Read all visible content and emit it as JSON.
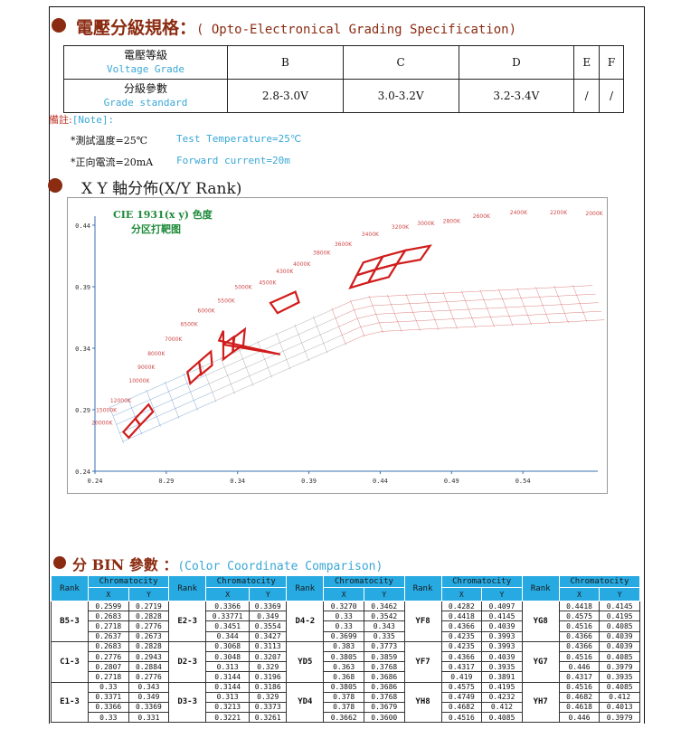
{
  "section1": {
    "title": "電壓分級規格：",
    "subtitle": "( Opto-Electronical Grading Specification)"
  },
  "grade_table": {
    "grades": [
      "B",
      "C",
      "D",
      "E",
      "F"
    ],
    "voltage_label_cn": "電壓等級",
    "voltage_label_en": "Voltage Grade",
    "standard_label_cn": "分級參數",
    "standard_label_en": "Grade standard",
    "standards": [
      "2.8-3.0V",
      "3.0-3.2V",
      "3.2-3.4V",
      "/",
      "/"
    ]
  },
  "notes": {
    "label": "備註:",
    "label_en": "[Note]:",
    "temp_cn": "*測試溫度=25℃",
    "temp_en": "Test Temperature=25℃",
    "current_cn": "*正向電流=20mA",
    "current_en": "Forward current=20m"
  },
  "section2": {
    "title": "X Y 軸分佈(X/Y Rank)"
  },
  "chart_data": {
    "type": "scatter",
    "title": "CIE 1931(x y) 色度",
    "subtitle": "分区打靶图",
    "xlim": [
      0.24,
      0.59
    ],
    "ylim": [
      0.24,
      0.44
    ],
    "x_ticks": [
      "0.24",
      "0.29",
      "0.34",
      "0.39",
      "0.44",
      "0.49",
      "0.54"
    ],
    "y_ticks": [
      "0.44",
      "0.39",
      "0.34",
      "0.29",
      "0.24"
    ],
    "cct_labels": [
      {
        "text": "20000K",
        "x": 0.245,
        "y": 0.278
      },
      {
        "text": "15000K",
        "x": 0.248,
        "y": 0.288
      },
      {
        "text": "12000K",
        "x": 0.258,
        "y": 0.296
      },
      {
        "text": "10000K",
        "x": 0.271,
        "y": 0.312
      },
      {
        "text": "9000K",
        "x": 0.276,
        "y": 0.323
      },
      {
        "text": "8000K",
        "x": 0.283,
        "y": 0.334
      },
      {
        "text": "7000K",
        "x": 0.295,
        "y": 0.346
      },
      {
        "text": "6500K",
        "x": 0.306,
        "y": 0.358
      },
      {
        "text": "6000K",
        "x": 0.318,
        "y": 0.369
      },
      {
        "text": "5500K",
        "x": 0.332,
        "y": 0.377
      },
      {
        "text": "5000K",
        "x": 0.344,
        "y": 0.388
      },
      {
        "text": "4500K",
        "x": 0.361,
        "y": 0.392
      },
      {
        "text": "4300K",
        "x": 0.373,
        "y": 0.401
      },
      {
        "text": "4000K",
        "x": 0.385,
        "y": 0.407
      },
      {
        "text": "3800K",
        "x": 0.399,
        "y": 0.416
      },
      {
        "text": "3600K",
        "x": 0.414,
        "y": 0.423
      },
      {
        "text": "3400K",
        "x": 0.433,
        "y": 0.431
      },
      {
        "text": "3200K",
        "x": 0.454,
        "y": 0.437
      },
      {
        "text": "3000K",
        "x": 0.472,
        "y": 0.44
      },
      {
        "text": "2800K",
        "x": 0.49,
        "y": 0.442
      },
      {
        "text": "2600K",
        "x": 0.511,
        "y": 0.446
      },
      {
        "text": "2400K",
        "x": 0.537,
        "y": 0.449
      },
      {
        "text": "2200K",
        "x": 0.565,
        "y": 0.449
      },
      {
        "text": "2000K",
        "x": 0.59,
        "y": 0.448
      }
    ],
    "red_bins": [
      {
        "name": "B5-3",
        "points": [
          [
            0.2599,
            0.2719
          ],
          [
            0.2683,
            0.2828
          ],
          [
            0.2718,
            0.2776
          ],
          [
            0.2637,
            0.2673
          ]
        ]
      },
      {
        "name": "C1-3",
        "points": [
          [
            0.2683,
            0.2828
          ],
          [
            0.2776,
            0.2943
          ],
          [
            0.2807,
            0.2884
          ],
          [
            0.2718,
            0.2776
          ]
        ]
      },
      {
        "name": "E1-3",
        "points": [
          [
            0.33,
            0.343
          ],
          [
            0.3371,
            0.349
          ],
          [
            0.3366,
            0.3369
          ],
          [
            0.33,
            0.331
          ]
        ]
      },
      {
        "name": "E2-3",
        "points": [
          [
            0.3366,
            0.3369
          ],
          [
            0.33771,
            0.349
          ],
          [
            0.3451,
            0.3554
          ],
          [
            0.344,
            0.3427
          ]
        ]
      },
      {
        "name": "D3-3",
        "points": [
          [
            0.3144,
            0.3186
          ],
          [
            0.313,
            0.329
          ],
          [
            0.3213,
            0.3373
          ],
          [
            0.3221,
            0.3261
          ]
        ]
      },
      {
        "name": "D2-3",
        "points": [
          [
            0.3068,
            0.3113
          ],
          [
            0.3048,
            0.3207
          ],
          [
            0.313,
            0.329
          ],
          [
            0.3144,
            0.3196
          ]
        ]
      },
      {
        "name": "D4-2",
        "points": [
          [
            0.327,
            0.3462
          ],
          [
            0.33,
            0.3542
          ],
          [
            0.33,
            0.343
          ],
          [
            0.3699,
            0.335
          ]
        ]
      },
      {
        "name": "YD5",
        "points": [
          [
            0.383,
            0.3773
          ],
          [
            0.3805,
            0.3859
          ],
          [
            0.363,
            0.3768
          ],
          [
            0.368,
            0.3686
          ]
        ]
      },
      {
        "name": "YF8",
        "points": [
          [
            0.4282,
            0.4097
          ],
          [
            0.4418,
            0.4145
          ],
          [
            0.4366,
            0.4039
          ],
          [
            0.4235,
            0.3993
          ]
        ]
      },
      {
        "name": "YF7",
        "points": [
          [
            0.4235,
            0.3993
          ],
          [
            0.4366,
            0.4039
          ],
          [
            0.4317,
            0.3935
          ],
          [
            0.419,
            0.3891
          ]
        ]
      },
      {
        "name": "YG8",
        "points": [
          [
            0.4418,
            0.4145
          ],
          [
            0.4575,
            0.4195
          ],
          [
            0.4516,
            0.4085
          ],
          [
            0.4366,
            0.4039
          ]
        ]
      },
      {
        "name": "YG7",
        "points": [
          [
            0.4366,
            0.4039
          ],
          [
            0.4516,
            0.4085
          ],
          [
            0.446,
            0.3979
          ],
          [
            0.4317,
            0.3935
          ]
        ]
      },
      {
        "name": "YH8",
        "points": [
          [
            0.4575,
            0.4195
          ],
          [
            0.4749,
            0.4232
          ],
          [
            0.4682,
            0.412
          ],
          [
            0.4516,
            0.4085
          ]
        ]
      }
    ]
  },
  "section3": {
    "title": "分 BIN 參數 ：",
    "subtitle": "(Color Coordinate Comparison)"
  },
  "bin_table": {
    "rank_label": "Rank",
    "chroma_label": "Chromatocity",
    "x_label": "X",
    "y_label": "Y",
    "groups": [
      {
        "col1_rank": "B5-3",
        "col1": [
          [
            "0.2599",
            "0.2719"
          ],
          [
            "0.2683",
            "0.2828"
          ],
          [
            "0.2718",
            "0.2776"
          ],
          [
            "0.2637",
            "0.2673"
          ]
        ],
        "col2_rank": "E2-3",
        "col2": [
          [
            "0.3366",
            "0.3369"
          ],
          [
            "0.33771",
            "0.349"
          ],
          [
            "0.3451",
            "0.3554"
          ],
          [
            "0.344",
            "0.3427"
          ]
        ],
        "col3_rank": "D4-2",
        "col3": [
          [
            "0.3270",
            "0.3462"
          ],
          [
            "0.33",
            "0.3542"
          ],
          [
            "0.33",
            "0.343"
          ],
          [
            "0.3699",
            "0.335"
          ]
        ],
        "col4_rank": "YF8",
        "col4": [
          [
            "0.4282",
            "0.4097"
          ],
          [
            "0.4418",
            "0.4145"
          ],
          [
            "0.4366",
            "0.4039"
          ],
          [
            "0.4235",
            "0.3993"
          ]
        ],
        "col5_rank": "YG8",
        "col5": [
          [
            "0.4418",
            "0.4145"
          ],
          [
            "0.4575",
            "0.4195"
          ],
          [
            "0.4516",
            "0.4085"
          ],
          [
            "0.4366",
            "0.4039"
          ]
        ]
      },
      {
        "col1_rank": "C1-3",
        "col1": [
          [
            "0.2683",
            "0.2828"
          ],
          [
            "0.2776",
            "0.2943"
          ],
          [
            "0.2807",
            "0.2884"
          ],
          [
            "0.2718",
            "0.2776"
          ]
        ],
        "col2_rank": "D2-3",
        "col2": [
          [
            "0.3068",
            "0.3113"
          ],
          [
            "0.3048",
            "0.3207"
          ],
          [
            "0.313",
            "0.329"
          ],
          [
            "0.3144",
            "0.3196"
          ]
        ],
        "col3_rank": "YD5",
        "col3": [
          [
            "0.383",
            "0.3773"
          ],
          [
            "0.3805",
            "0.3859"
          ],
          [
            "0.363",
            "0.3768"
          ],
          [
            "0.368",
            "0.3686"
          ]
        ],
        "col4_rank": "YF7",
        "col4": [
          [
            "0.4235",
            "0.3993"
          ],
          [
            "0.4366",
            "0.4039"
          ],
          [
            "0.4317",
            "0.3935"
          ],
          [
            "0.419",
            "0.3891"
          ]
        ],
        "col5_rank": "YG7",
        "col5": [
          [
            "0.4366",
            "0.4039"
          ],
          [
            "0.4516",
            "0.4085"
          ],
          [
            "0.446",
            "0.3979"
          ],
          [
            "0.4317",
            "0.3935"
          ]
        ]
      },
      {
        "col1_rank": "E1-3",
        "col1": [
          [
            "0.33",
            "0.343"
          ],
          [
            "0.3371",
            "0.349"
          ],
          [
            "0.3366",
            "0.3369"
          ],
          [
            "0.33",
            "0.331"
          ]
        ],
        "col2_rank": "D3-3",
        "col2": [
          [
            "0.3144",
            "0.3186"
          ],
          [
            "0.313",
            "0.329"
          ],
          [
            "0.3213",
            "0.3373"
          ],
          [
            "0.3221",
            "0.3261"
          ]
        ],
        "col3_rank": "YD4",
        "col3": [
          [
            "0.3805",
            "0.3686"
          ],
          [
            "0.378",
            "0.3768"
          ],
          [
            "0.378",
            "0.3679"
          ],
          [
            "0.3662",
            "0.3600"
          ]
        ],
        "col4_rank": "YH8",
        "col4": [
          [
            "0.4575",
            "0.4195"
          ],
          [
            "0.4749",
            "0.4232"
          ],
          [
            "0.4682",
            "0.412"
          ],
          [
            "0.4516",
            "0.4085"
          ]
        ],
        "col5_rank": "YH7",
        "col5": [
          [
            "0.4516",
            "0.4085"
          ],
          [
            "0.4682",
            "0.412"
          ],
          [
            "0.4618",
            "0.4013"
          ],
          [
            "0.446",
            "0.3979"
          ]
        ]
      }
    ]
  }
}
